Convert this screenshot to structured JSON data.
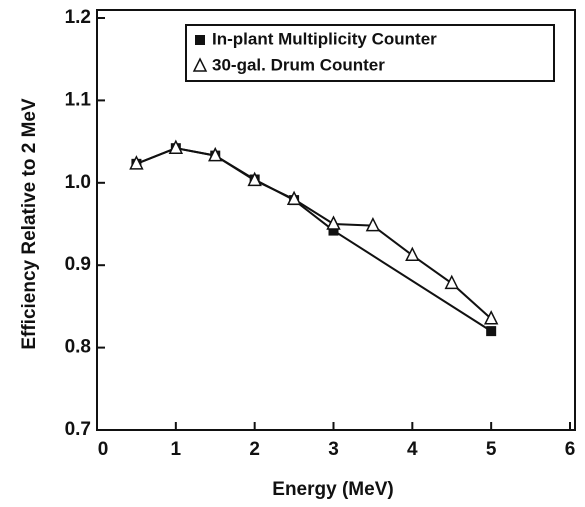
{
  "chart_data": {
    "type": "line",
    "xlabel": "Energy (MeV)",
    "ylabel": "Efficiency Relative to 2 MeV",
    "xlim": [
      0,
      6
    ],
    "xticks": [
      0,
      1,
      2,
      3,
      4,
      5,
      6
    ],
    "ylim": [
      0.7,
      1.2
    ],
    "yticks": [
      0.7,
      0.8,
      0.9,
      {
        "value": 1.0,
        "label": "1.0"
      },
      1.1,
      1.2
    ],
    "legend": "upper right",
    "series": [
      {
        "name": "In-plant Multiplicity Counter",
        "color": "#111111",
        "marker": "square",
        "x": [
          0.5,
          1,
          1.5,
          2,
          2.5,
          3,
          5
        ],
        "values": [
          1.023,
          1.042,
          1.033,
          1.004,
          0.979,
          0.942,
          0.82
        ]
      },
      {
        "name": "30-gal. Drum Counter",
        "color": "#111111",
        "marker": "triangle",
        "x": [
          0.5,
          1,
          1.5,
          2,
          2.5,
          3,
          3.5,
          4,
          4.5,
          5
        ],
        "values": [
          1.023,
          1.042,
          1.033,
          1.003,
          0.98,
          0.95,
          0.948,
          0.912,
          0.878,
          0.835
        ]
      }
    ]
  }
}
